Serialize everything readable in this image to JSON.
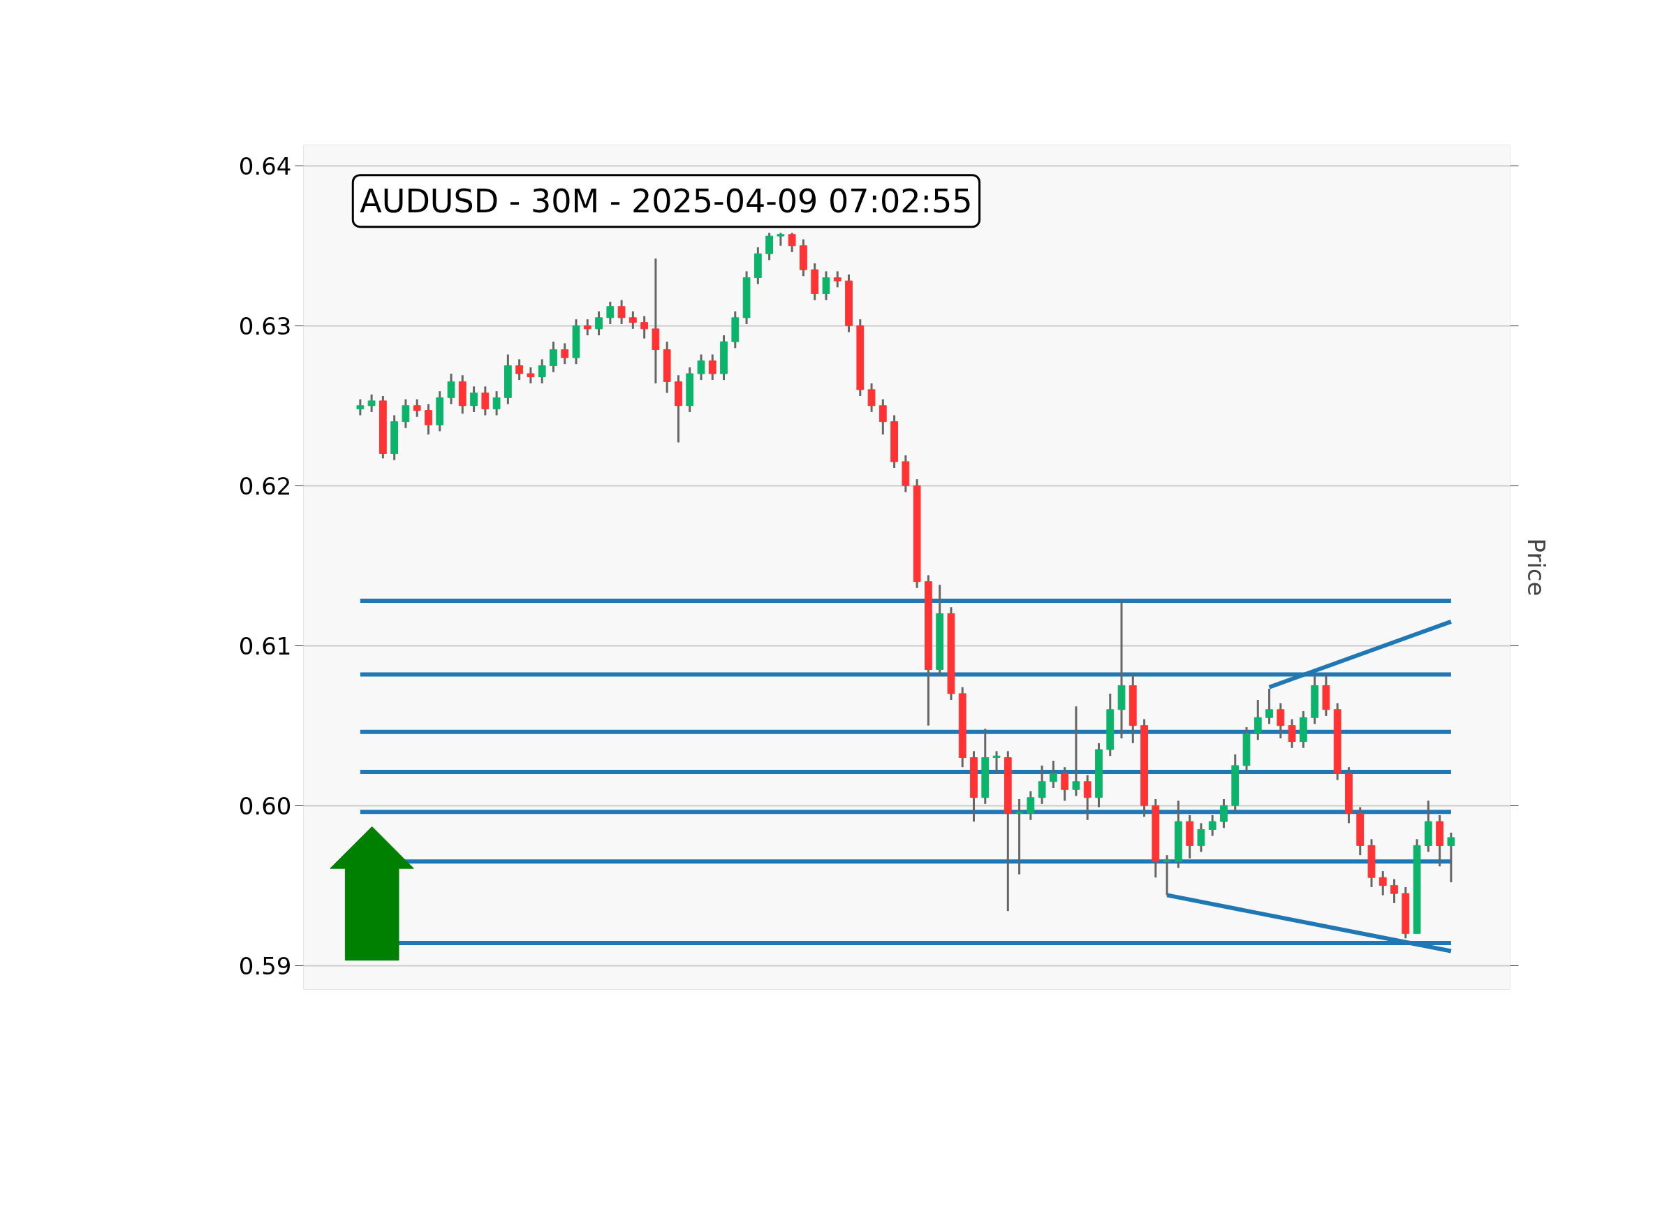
{
  "chart_data": {
    "type": "candlestick",
    "title": "AUDUSD - 30M - 2025-04-09 07:02:55",
    "ylabel": "Price",
    "categories": [
      null,
      null,
      null,
      null,
      null,
      null,
      null,
      null,
      null,
      null,
      null,
      null,
      null,
      null,
      null,
      null,
      null,
      null,
      null,
      null,
      null,
      null,
      null,
      null,
      null,
      null,
      null,
      null,
      null,
      null,
      null,
      null,
      null,
      null,
      null,
      null,
      null,
      null,
      null,
      null,
      null,
      null,
      null,
      null,
      null,
      null,
      null,
      null,
      null,
      null,
      null,
      null,
      null,
      null,
      null,
      null,
      null,
      null,
      null,
      null,
      null,
      null,
      null,
      null,
      null,
      null,
      null,
      null,
      null,
      null,
      null,
      null,
      null,
      null,
      null,
      null,
      null,
      null,
      null,
      null,
      null,
      null,
      null,
      null,
      null,
      null,
      null,
      null,
      null,
      null,
      null,
      null,
      null,
      null,
      null,
      null,
      null
    ],
    "ohlc": [
      [
        0.6248,
        0.6254,
        0.6244,
        0.625
      ],
      [
        0.625,
        0.6257,
        0.6246,
        0.6253
      ],
      [
        0.6253,
        0.6256,
        0.6217,
        0.622
      ],
      [
        0.622,
        0.6244,
        0.6216,
        0.624
      ],
      [
        0.624,
        0.6254,
        0.6236,
        0.625
      ],
      [
        0.625,
        0.6254,
        0.6243,
        0.6247
      ],
      [
        0.6247,
        0.6251,
        0.6232,
        0.6238
      ],
      [
        0.6238,
        0.6259,
        0.6234,
        0.6255
      ],
      [
        0.6255,
        0.627,
        0.6251,
        0.6265
      ],
      [
        0.6265,
        0.6269,
        0.6245,
        0.625
      ],
      [
        0.625,
        0.6262,
        0.6246,
        0.6258
      ],
      [
        0.6258,
        0.6262,
        0.6244,
        0.6248
      ],
      [
        0.6248,
        0.6259,
        0.6244,
        0.6255
      ],
      [
        0.6255,
        0.6282,
        0.6251,
        0.6275
      ],
      [
        0.6275,
        0.6279,
        0.6266,
        0.627
      ],
      [
        0.627,
        0.6274,
        0.6264,
        0.6268
      ],
      [
        0.6268,
        0.6279,
        0.6264,
        0.6275
      ],
      [
        0.6275,
        0.629,
        0.6271,
        0.6285
      ],
      [
        0.6285,
        0.6289,
        0.6276,
        0.628
      ],
      [
        0.628,
        0.6304,
        0.6276,
        0.63
      ],
      [
        0.63,
        0.6304,
        0.6294,
        0.6298
      ],
      [
        0.6298,
        0.6309,
        0.6294,
        0.6305
      ],
      [
        0.6305,
        0.6315,
        0.6301,
        0.6312
      ],
      [
        0.6312,
        0.6316,
        0.6301,
        0.6305
      ],
      [
        0.6305,
        0.6309,
        0.6298,
        0.6302
      ],
      [
        0.6302,
        0.6306,
        0.6292,
        0.6298
      ],
      [
        0.6298,
        0.6342,
        0.6264,
        0.6285
      ],
      [
        0.6285,
        0.629,
        0.6258,
        0.6265
      ],
      [
        0.6265,
        0.6269,
        0.6227,
        0.625
      ],
      [
        0.625,
        0.6274,
        0.6246,
        0.627
      ],
      [
        0.627,
        0.6282,
        0.6266,
        0.6278
      ],
      [
        0.6278,
        0.6282,
        0.6266,
        0.627
      ],
      [
        0.627,
        0.6294,
        0.6266,
        0.629
      ],
      [
        0.629,
        0.6309,
        0.6286,
        0.6305
      ],
      [
        0.6305,
        0.6334,
        0.6301,
        0.633
      ],
      [
        0.633,
        0.6349,
        0.6326,
        0.6345
      ],
      [
        0.6345,
        0.6358,
        0.6341,
        0.6356
      ],
      [
        0.6356,
        0.6358,
        0.635,
        0.6357
      ],
      [
        0.6357,
        0.6358,
        0.6346,
        0.635
      ],
      [
        0.635,
        0.6354,
        0.6331,
        0.6335
      ],
      [
        0.6335,
        0.6339,
        0.6316,
        0.632
      ],
      [
        0.632,
        0.6334,
        0.6316,
        0.633
      ],
      [
        0.633,
        0.6334,
        0.6324,
        0.6328
      ],
      [
        0.6328,
        0.6332,
        0.6296,
        0.63
      ],
      [
        0.63,
        0.6304,
        0.6256,
        0.626
      ],
      [
        0.626,
        0.6264,
        0.6246,
        0.625
      ],
      [
        0.625,
        0.6254,
        0.6232,
        0.624
      ],
      [
        0.624,
        0.6244,
        0.6211,
        0.6215
      ],
      [
        0.6215,
        0.6219,
        0.6196,
        0.62
      ],
      [
        0.62,
        0.6204,
        0.6136,
        0.614
      ],
      [
        0.614,
        0.6144,
        0.605,
        0.6085
      ],
      [
        0.6085,
        0.6138,
        0.6081,
        0.612
      ],
      [
        0.612,
        0.6124,
        0.6066,
        0.607
      ],
      [
        0.607,
        0.6074,
        0.6024,
        0.603
      ],
      [
        0.603,
        0.6034,
        0.599,
        0.6005
      ],
      [
        0.6005,
        0.6048,
        0.6001,
        0.603
      ],
      [
        0.603,
        0.6034,
        0.602,
        0.6031
      ],
      [
        0.603,
        0.6034,
        0.5934,
        0.5995
      ],
      [
        0.5995,
        0.6004,
        0.5957,
        0.5996
      ],
      [
        0.5995,
        0.6009,
        0.5991,
        0.6005
      ],
      [
        0.6005,
        0.6025,
        0.6001,
        0.6015
      ],
      [
        0.6015,
        0.6028,
        0.6011,
        0.602
      ],
      [
        0.602,
        0.6024,
        0.6003,
        0.601
      ],
      [
        0.601,
        0.6062,
        0.6006,
        0.6015
      ],
      [
        0.6015,
        0.6019,
        0.5991,
        0.6005
      ],
      [
        0.6005,
        0.6039,
        0.5999,
        0.6035
      ],
      [
        0.6035,
        0.607,
        0.6031,
        0.606
      ],
      [
        0.606,
        0.6128,
        0.6042,
        0.6075
      ],
      [
        0.6075,
        0.6082,
        0.6039,
        0.605
      ],
      [
        0.605,
        0.6054,
        0.5993,
        0.6
      ],
      [
        0.6,
        0.6004,
        0.5955,
        0.5965
      ],
      [
        0.5965,
        0.5969,
        0.5944,
        0.5966
      ],
      [
        0.5965,
        0.6003,
        0.5961,
        0.599
      ],
      [
        0.599,
        0.5994,
        0.5967,
        0.5975
      ],
      [
        0.5975,
        0.5989,
        0.5971,
        0.5985
      ],
      [
        0.5985,
        0.5994,
        0.5981,
        0.599
      ],
      [
        0.599,
        0.6004,
        0.5986,
        0.6
      ],
      [
        0.6,
        0.6032,
        0.5996,
        0.6025
      ],
      [
        0.6025,
        0.6049,
        0.6021,
        0.6045
      ],
      [
        0.6045,
        0.6066,
        0.6041,
        0.6055
      ],
      [
        0.6055,
        0.6073,
        0.6051,
        0.606
      ],
      [
        0.606,
        0.6064,
        0.6042,
        0.605
      ],
      [
        0.605,
        0.6054,
        0.6036,
        0.604
      ],
      [
        0.604,
        0.6059,
        0.6036,
        0.6055
      ],
      [
        0.6055,
        0.6082,
        0.6051,
        0.6075
      ],
      [
        0.6075,
        0.6082,
        0.6056,
        0.606
      ],
      [
        0.606,
        0.6064,
        0.6016,
        0.602
      ],
      [
        0.602,
        0.6024,
        0.5989,
        0.5995
      ],
      [
        0.5995,
        0.5999,
        0.5969,
        0.5975
      ],
      [
        0.5975,
        0.5979,
        0.5949,
        0.5955
      ],
      [
        0.5955,
        0.5959,
        0.5944,
        0.595
      ],
      [
        0.595,
        0.5954,
        0.5939,
        0.5945
      ],
      [
        0.5945,
        0.5949,
        0.5917,
        0.592
      ],
      [
        0.592,
        0.5979,
        0.592,
        0.5975
      ],
      [
        0.5975,
        0.6003,
        0.5971,
        0.599
      ],
      [
        0.599,
        0.5994,
        0.5962,
        0.5975
      ],
      [
        0.5975,
        0.5983,
        0.5952,
        0.598
      ]
    ],
    "series": [
      {
        "type": "line",
        "color": "#1f77b4",
        "values": [
          null,
          null,
          null,
          null,
          null,
          null,
          null,
          null,
          null,
          null,
          null,
          null,
          null,
          null,
          null,
          null,
          null,
          null,
          null,
          null,
          null,
          null,
          null,
          null,
          null,
          null,
          null,
          null,
          null,
          null,
          null,
          null,
          null,
          null,
          null,
          null,
          null,
          null,
          null,
          null,
          null,
          null,
          null,
          null,
          null,
          null,
          null,
          null,
          null,
          null,
          null,
          null,
          null,
          null,
          null,
          null,
          null,
          null,
          null,
          null,
          null,
          null,
          null,
          null,
          null,
          null,
          null,
          null,
          null,
          null,
          null,
          null,
          null,
          null,
          null,
          null,
          null,
          null,
          null,
          null,
          0.6074,
          null,
          null,
          null,
          null,
          null,
          null,
          null,
          null,
          null,
          null,
          null,
          null,
          null,
          null,
          null,
          0.6115
        ]
      },
      {
        "type": "line",
        "color": "#1f77b4",
        "values": [
          null,
          null,
          null,
          null,
          null,
          null,
          null,
          null,
          null,
          null,
          null,
          null,
          null,
          null,
          null,
          null,
          null,
          null,
          null,
          null,
          null,
          null,
          null,
          null,
          null,
          null,
          null,
          null,
          null,
          null,
          null,
          null,
          null,
          null,
          null,
          null,
          null,
          null,
          null,
          null,
          null,
          null,
          null,
          null,
          null,
          null,
          null,
          null,
          null,
          null,
          null,
          null,
          null,
          null,
          null,
          null,
          null,
          null,
          null,
          null,
          null,
          null,
          null,
          null,
          null,
          null,
          null,
          null,
          null,
          null,
          null,
          0.5944,
          null,
          null,
          null,
          null,
          null,
          null,
          null,
          null,
          null,
          null,
          null,
          null,
          null,
          null,
          null,
          null,
          null,
          null,
          null,
          null,
          null,
          null,
          null,
          null,
          0.5909
        ]
      }
    ],
    "ref_lines": [
      {
        "axis": "y",
        "value": 0.6128,
        "color": "#1f77b4"
      },
      {
        "axis": "y",
        "value": 0.6082,
        "color": "#1f77b4"
      },
      {
        "axis": "y",
        "value": 0.6046,
        "color": "#1f77b4"
      },
      {
        "axis": "y",
        "value": 0.6021,
        "color": "#1f77b4"
      },
      {
        "axis": "y",
        "value": 0.5996,
        "color": "#1f77b4"
      },
      {
        "axis": "y",
        "value": 0.5965,
        "color": "#1f77b4"
      },
      {
        "axis": "y",
        "value": 0.5914,
        "color": "#1f77b4"
      }
    ],
    "ylim": [
      0.5885,
      0.6413
    ],
    "yticks": [
      0.59,
      {
        "value": 0.6,
        "label": "0.60"
      },
      0.61,
      0.62,
      0.63,
      0.64
    ],
    "tick_labels": "y",
    "grid": "y"
  }
}
